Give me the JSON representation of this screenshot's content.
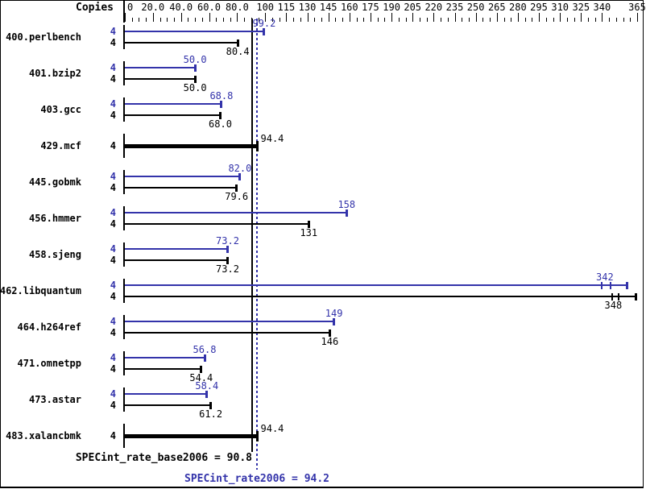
{
  "header": {
    "copies_label": "Copies"
  },
  "colors": {
    "peak": "#3333aa",
    "base": "#000000",
    "background": "#ffffff",
    "border": "#000000"
  },
  "chart_data": {
    "type": "bar",
    "orientation": "horizontal",
    "xlim": [
      0,
      365
    ],
    "minor_tick_step": 5,
    "axis_ticks": [
      {
        "v": 0,
        "label": "0"
      },
      {
        "v": 20,
        "label": "20.0"
      },
      {
        "v": 40,
        "label": "40.0"
      },
      {
        "v": 60,
        "label": "60.0"
      },
      {
        "v": 80,
        "label": "80.0"
      },
      {
        "v": 100,
        "label": "100"
      },
      {
        "v": 115,
        "label": "115"
      },
      {
        "v": 130,
        "label": "130"
      },
      {
        "v": 145,
        "label": "145"
      },
      {
        "v": 160,
        "label": "160"
      },
      {
        "v": 175,
        "label": "175"
      },
      {
        "v": 190,
        "label": "190"
      },
      {
        "v": 205,
        "label": "205"
      },
      {
        "v": 220,
        "label": "220"
      },
      {
        "v": 235,
        "label": "235"
      },
      {
        "v": 250,
        "label": "250"
      },
      {
        "v": 265,
        "label": "265"
      },
      {
        "v": 280,
        "label": "280"
      },
      {
        "v": 295,
        "label": "295"
      },
      {
        "v": 310,
        "label": "310"
      },
      {
        "v": 325,
        "label": "325"
      },
      {
        "v": 340,
        "label": "340"
      },
      {
        "v": 365,
        "label": "365"
      }
    ],
    "benchmarks": [
      {
        "name": "400.perlbench",
        "copies": "4",
        "peak": {
          "value": 99.2,
          "label": "99.2"
        },
        "base": {
          "value": 80.4,
          "label": "80.4"
        }
      },
      {
        "name": "401.bzip2",
        "copies": "4",
        "peak": {
          "value": 50.0,
          "label": "50.0"
        },
        "base": {
          "value": 50.0,
          "label": "50.0"
        }
      },
      {
        "name": "403.gcc",
        "copies": "4",
        "peak": {
          "value": 68.8,
          "label": "68.8"
        },
        "base": {
          "value": 68.0,
          "label": "68.0"
        }
      },
      {
        "name": "429.mcf",
        "copies": "4",
        "equal": {
          "value": 94.4,
          "label": "94.4"
        }
      },
      {
        "name": "445.gobmk",
        "copies": "4",
        "peak": {
          "value": 82.0,
          "label": "82.0"
        },
        "base": {
          "value": 79.6,
          "label": "79.6"
        }
      },
      {
        "name": "456.hmmer",
        "copies": "4",
        "peak": {
          "value": 158,
          "label": "158"
        },
        "base": {
          "value": 131,
          "label": "131"
        }
      },
      {
        "name": "458.sjeng",
        "copies": "4",
        "peak": {
          "value": 73.2,
          "label": "73.2"
        },
        "base": {
          "value": 73.2,
          "label": "73.2"
        }
      },
      {
        "name": "462.libquantum",
        "copies": "4",
        "peak": {
          "value": 342,
          "label": "342",
          "line_end": 358,
          "marks": [
            340,
            346
          ]
        },
        "base": {
          "value": 348,
          "label": "348",
          "line_end": 364,
          "marks": [
            347,
            352
          ]
        }
      },
      {
        "name": "464.h264ref",
        "copies": "4",
        "peak": {
          "value": 149,
          "label": "149"
        },
        "base": {
          "value": 146,
          "label": "146"
        }
      },
      {
        "name": "471.omnetpp",
        "copies": "4",
        "peak": {
          "value": 56.8,
          "label": "56.8"
        },
        "base": {
          "value": 54.4,
          "label": "54.4"
        }
      },
      {
        "name": "473.astar",
        "copies": "4",
        "peak": {
          "value": 58.4,
          "label": "58.4"
        },
        "base": {
          "value": 61.2,
          "label": "61.2"
        }
      },
      {
        "name": "483.xalancbmk",
        "copies": "4",
        "equal": {
          "value": 94.4,
          "label": "94.4"
        }
      }
    ],
    "reference_lines": [
      {
        "name": "SPECint_rate_base2006",
        "value": 90.8,
        "style": "solid",
        "color": "#000000"
      },
      {
        "name": "SPECint_rate2006",
        "value": 94.2,
        "style": "dotted",
        "color": "#3333aa"
      }
    ]
  },
  "summary": {
    "base_text": "SPECint_rate_base2006 = 90.8",
    "peak_text": "SPECint_rate2006 = 94.2"
  }
}
